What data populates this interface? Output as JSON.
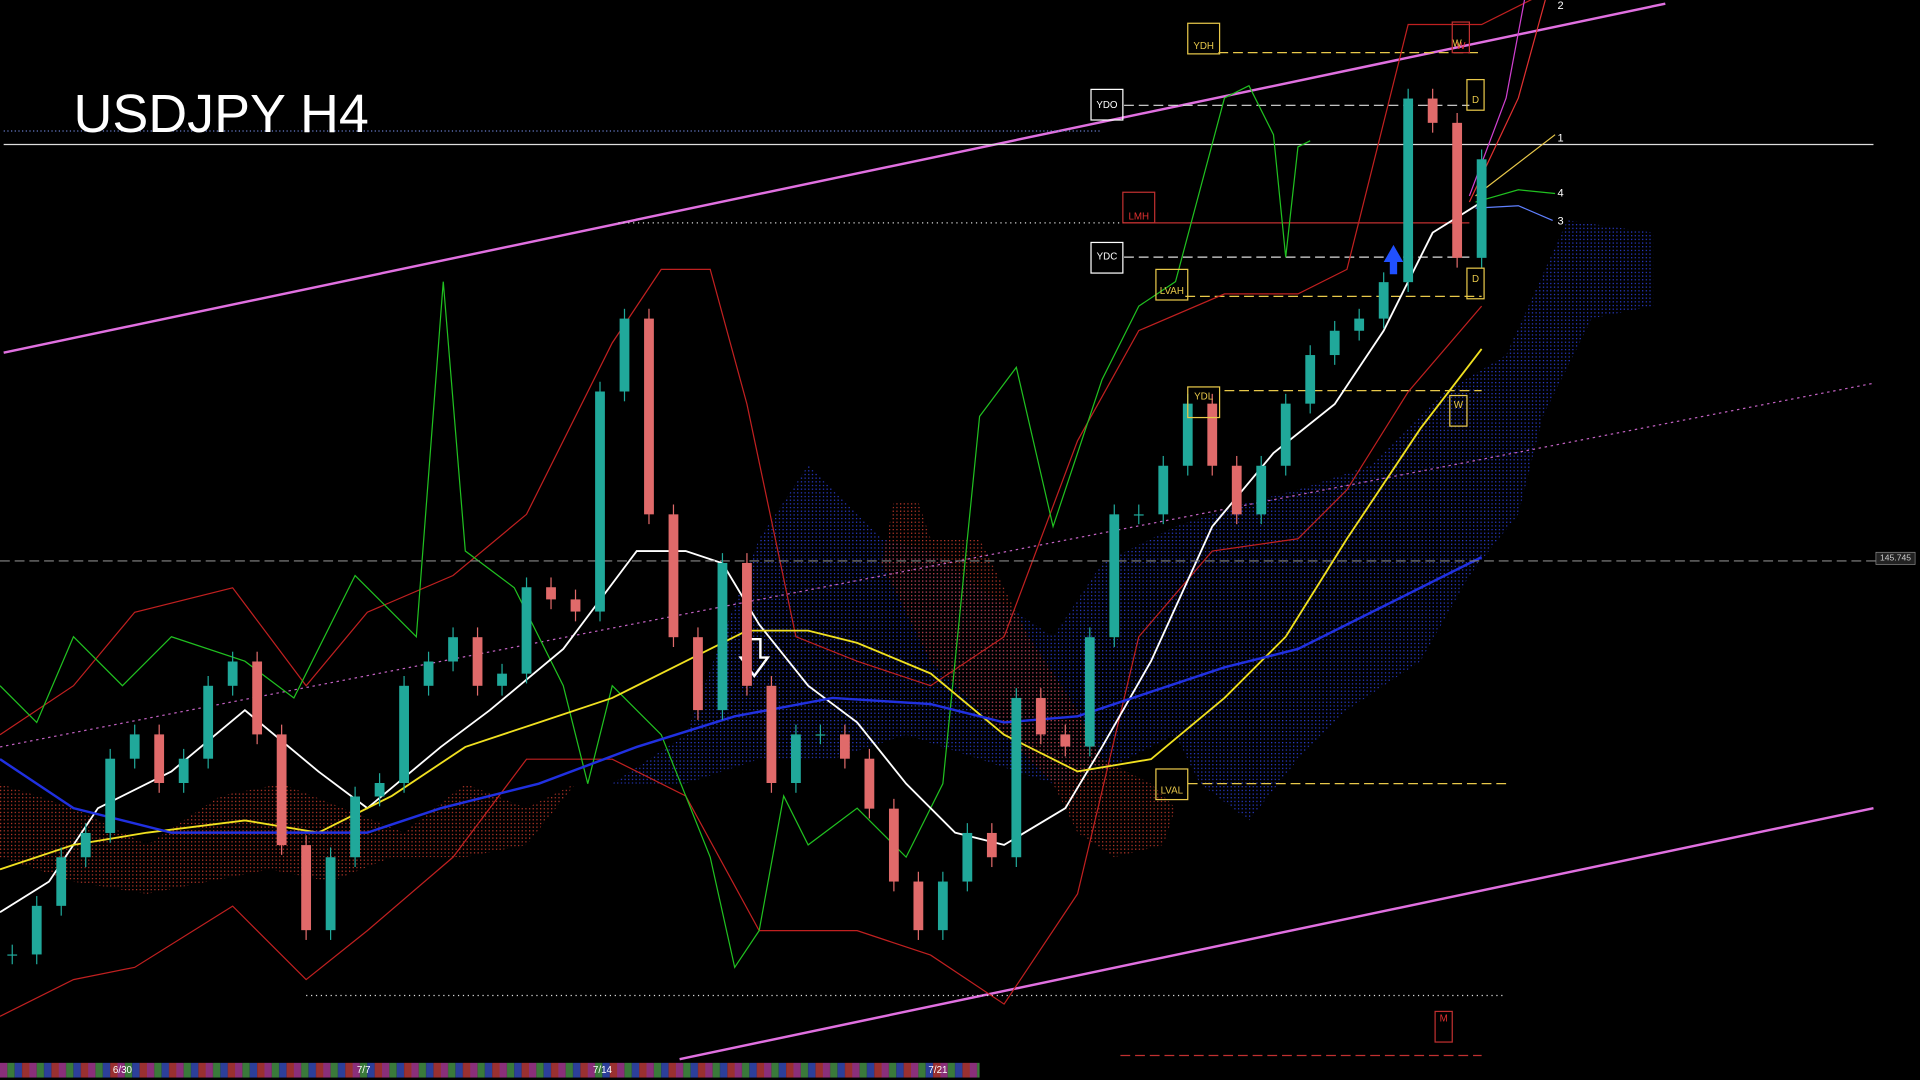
{
  "chart_data": {
    "type": "candlestick",
    "title": "USDJPY H4",
    "closes": [
      142.83,
      143.19,
      143.55,
      143.73,
      144.28,
      144.46,
      144.1,
      144.28,
      144.82,
      145.0,
      144.46,
      143.64,
      143.01,
      143.55,
      144.0,
      144.1,
      144.82,
      145.0,
      145.18,
      144.82,
      144.91,
      145.55,
      145.46,
      145.37,
      147.0,
      147.54,
      146.09,
      145.18,
      144.64,
      145.73,
      144.82,
      144.1,
      144.46,
      144.46,
      144.28,
      143.91,
      143.37,
      143.01,
      143.37,
      143.73,
      143.55,
      144.73,
      144.46,
      144.37,
      145.18,
      146.09,
      146.09,
      146.45,
      146.91,
      146.45,
      146.09,
      146.45,
      146.91,
      147.27,
      147.45,
      147.54,
      147.81,
      149.17,
      148.99,
      147.99,
      148.72
    ],
    "ylim": [
      141.9,
      149.9
    ],
    "current_price": 145.745,
    "dates": [
      "6/30",
      "7/7",
      "7/14",
      "7/21"
    ],
    "level_labels": [
      "YDH",
      "YDO",
      "LMH",
      "YDC",
      "LVAH",
      "YDL",
      "LVAL",
      "W",
      "D",
      "D",
      "W",
      "W",
      "M"
    ],
    "line_numbers": [
      "1",
      "2",
      "3",
      "4"
    ]
  }
}
